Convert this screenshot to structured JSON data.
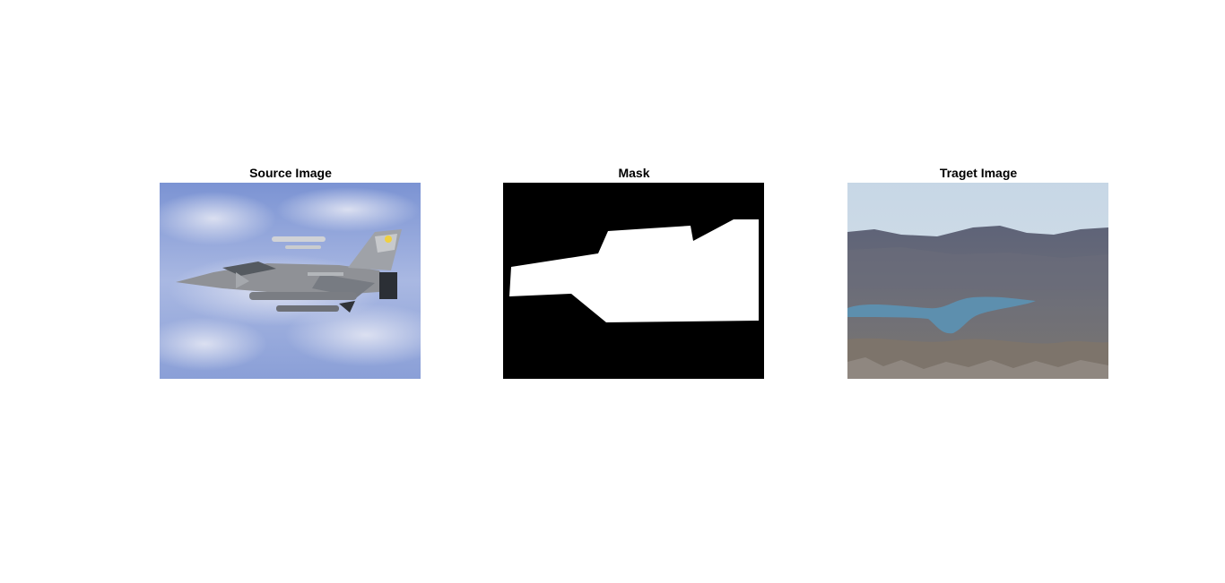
{
  "figure": {
    "panels": [
      {
        "title": "Source Image",
        "image": "fighter-jet-in-sky"
      },
      {
        "title": "Mask",
        "image": "binary-mask-polygon"
      },
      {
        "title": "Traget Image",
        "image": "aerial-lake-mountains"
      }
    ]
  },
  "colors": {
    "background": "#ffffff",
    "sky": "#8fa3d8",
    "mask_fill": "#000000",
    "mask_shape": "#ffffff",
    "lake": "#5d8fae"
  }
}
